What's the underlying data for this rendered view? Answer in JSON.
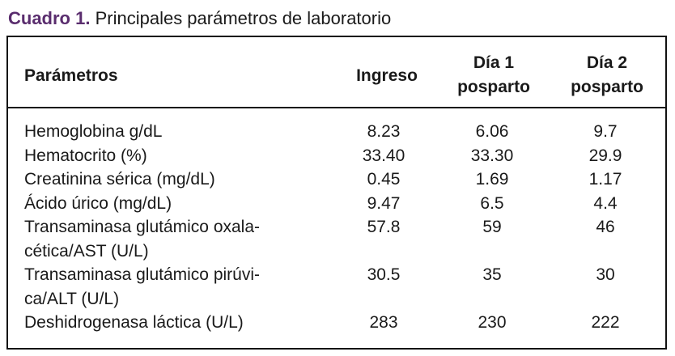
{
  "caption": {
    "label": "Cuadro 1.",
    "text": "Principales parámetros de laboratorio"
  },
  "table": {
    "headers": {
      "param": "Parámetros",
      "col1": "Ingreso",
      "col2": "Día 1\nposparto",
      "col3": "Día 2\nposparto"
    },
    "rows": [
      {
        "param": "Hemoglobina g/dL",
        "v1": "8.23",
        "v2": "6.06",
        "v3": "9.7"
      },
      {
        "param": "Hematocrito (%)",
        "v1": "33.40",
        "v2": "33.30",
        "v3": "29.9"
      },
      {
        "param": "Creatinina sérica (mg/dL)",
        "v1": "0.45",
        "v2": "1.69",
        "v3": "1.17"
      },
      {
        "param": "Ácido úrico (mg/dL)",
        "v1": "9.47",
        "v2": "6.5",
        "v3": "4.4"
      },
      {
        "param": "Transaminasa glutámico oxala-\ncética/AST (U/L)",
        "v1": "57.8",
        "v2": "59",
        "v3": "46"
      },
      {
        "param": "Transaminasa glutámico pirúvi-\nca/ALT (U/L)",
        "v1": "30.5",
        "v2": "35",
        "v3": "30"
      },
      {
        "param": "Deshidrogenasa láctica (U/L)",
        "v1": "283",
        "v2": "230",
        "v3": "222"
      }
    ]
  }
}
